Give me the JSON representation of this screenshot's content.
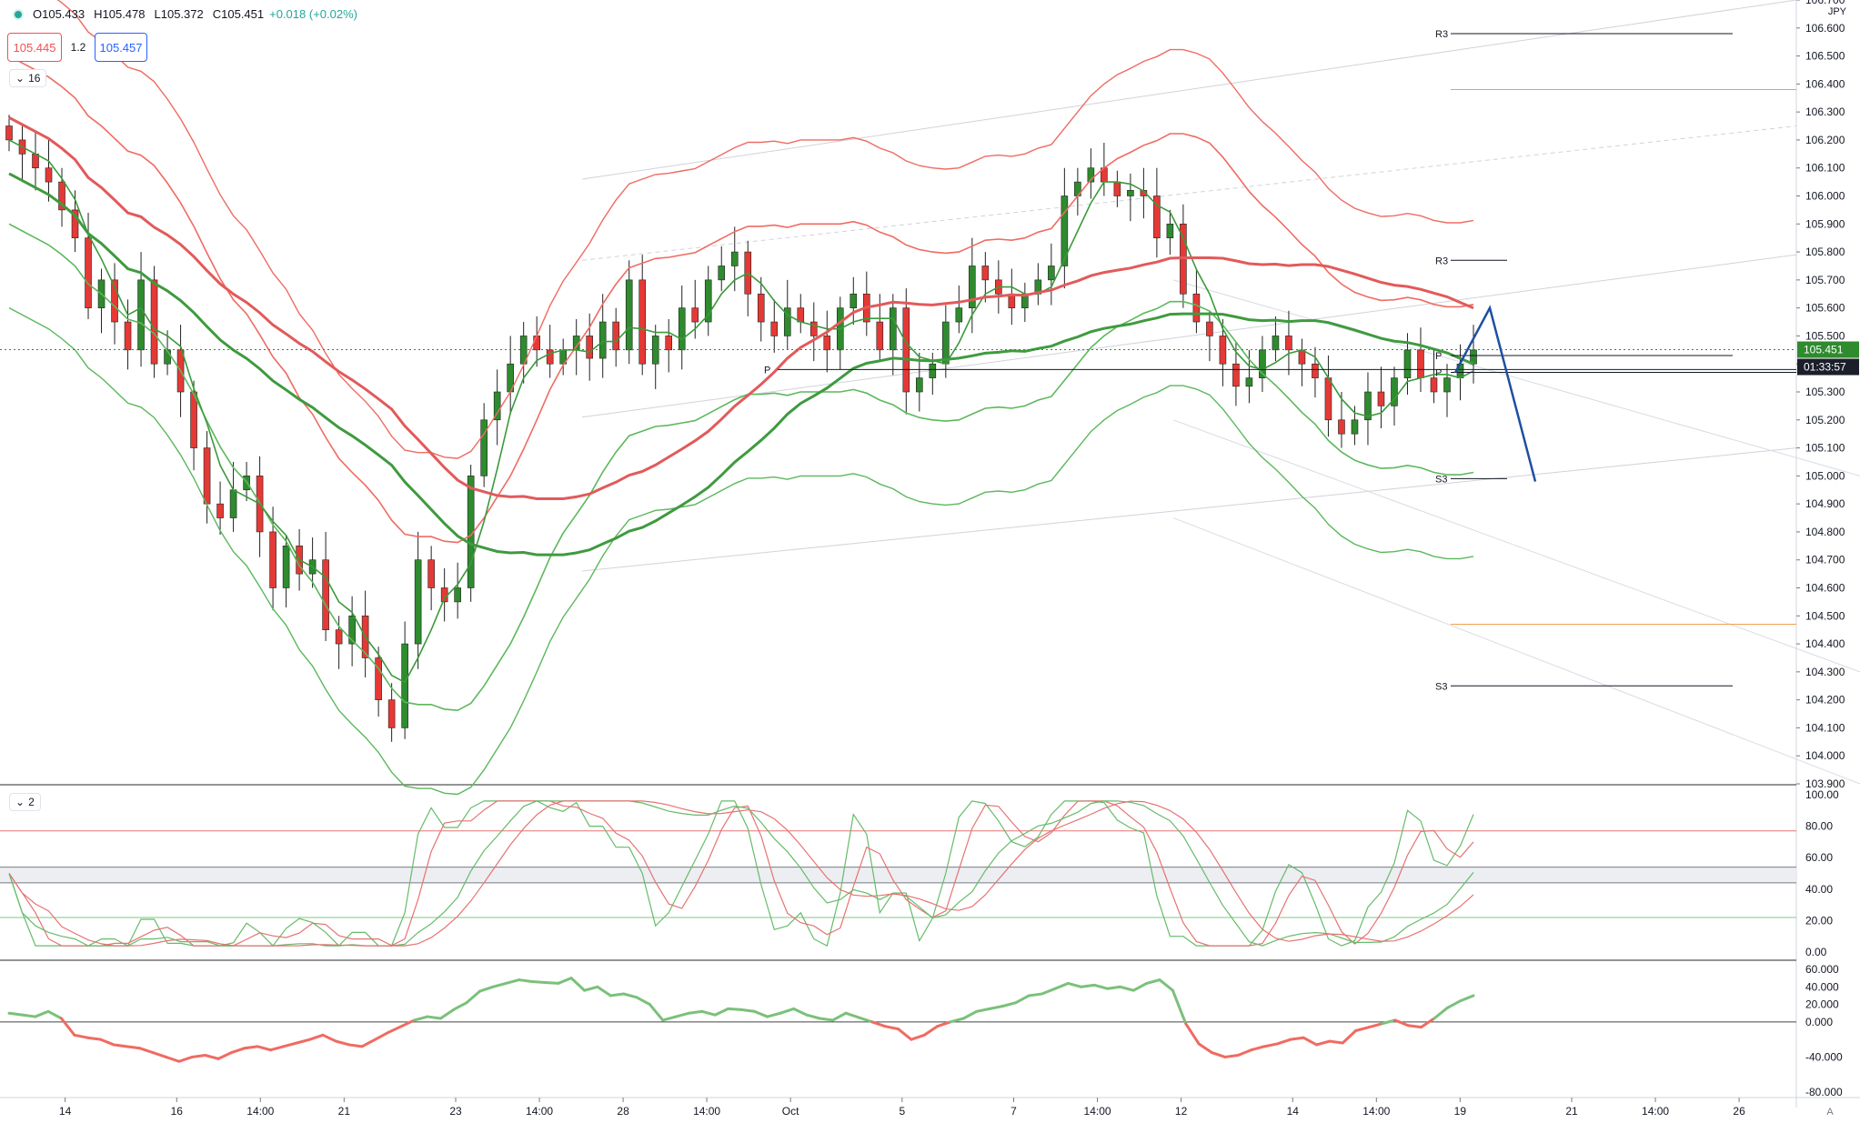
{
  "legend": {
    "open": "O105.433",
    "high": "H105.478",
    "low": "L105.372",
    "close": "C105.451",
    "change": "+0.018 (+0.02%)"
  },
  "quote": {
    "bid": "105.445",
    "spread": "1.2",
    "ask": "105.457"
  },
  "main_pane_toggle": "16",
  "osc_pane_toggle": "2",
  "currency": "JPY",
  "last_price_label": "105.451",
  "countdown_label": "01:33:57",
  "axis_footer": "A",
  "colors": {
    "up": "#2e8b2e",
    "down": "#e53935",
    "accent_blue": "#1e4fa0"
  },
  "chart_data": [
    {
      "type": "candlestick",
      "ylim": [
        103.9,
        106.7
      ],
      "y_ticks": [
        "106.700",
        "106.600",
        "106.500",
        "106.400",
        "106.300",
        "106.200",
        "106.100",
        "106.000",
        "105.900",
        "105.800",
        "105.700",
        "105.600",
        "105.500",
        "105.400",
        "105.300",
        "105.200",
        "105.100",
        "105.000",
        "104.900",
        "104.800",
        "104.700",
        "104.600",
        "104.500",
        "104.400",
        "104.300",
        "104.200",
        "104.100",
        "104.000",
        "103.900"
      ],
      "y_tick_values": [
        106.7,
        106.6,
        106.5,
        106.4,
        106.3,
        106.2,
        106.1,
        106.0,
        105.9,
        105.8,
        105.7,
        105.6,
        105.5,
        105.4,
        105.3,
        105.2,
        105.1,
        105.0,
        104.9,
        104.8,
        104.7,
        104.6,
        104.5,
        104.4,
        104.3,
        104.2,
        104.1,
        104.0,
        103.9
      ],
      "pivot_labels": [
        {
          "label": "R3",
          "value": 106.58
        },
        {
          "label": "R3",
          "value": 105.77
        },
        {
          "label": "P",
          "value": 105.38
        },
        {
          "label": "P",
          "value": 105.37
        },
        {
          "label": "P",
          "value": 105.43
        },
        {
          "label": "S3",
          "value": 104.99
        },
        {
          "label": "S3",
          "value": 104.25
        }
      ],
      "orange_levels": [
        106.38,
        104.47
      ],
      "closes": [
        106.2,
        106.15,
        106.1,
        106.05,
        105.95,
        105.85,
        105.6,
        105.7,
        105.55,
        105.45,
        105.7,
        105.4,
        105.45,
        105.3,
        105.1,
        104.9,
        104.85,
        104.95,
        105.0,
        104.8,
        104.6,
        104.75,
        104.65,
        104.7,
        104.45,
        104.4,
        104.5,
        104.35,
        104.2,
        104.1,
        104.4,
        104.7,
        104.6,
        104.55,
        104.6,
        105.0,
        105.2,
        105.3,
        105.4,
        105.5,
        105.45,
        105.4,
        105.45,
        105.5,
        105.42,
        105.55,
        105.45,
        105.7,
        105.4,
        105.5,
        105.45,
        105.6,
        105.55,
        105.7,
        105.75,
        105.8,
        105.65,
        105.55,
        105.5,
        105.6,
        105.55,
        105.5,
        105.45,
        105.6,
        105.65,
        105.55,
        105.45,
        105.6,
        105.3,
        105.35,
        105.4,
        105.55,
        105.6,
        105.75,
        105.7,
        105.65,
        105.6,
        105.65,
        105.7,
        105.75,
        106.0,
        106.05,
        106.1,
        106.05,
        106.0,
        106.02,
        106.0,
        105.85,
        105.9,
        105.65,
        105.55,
        105.5,
        105.4,
        105.32,
        105.35,
        105.45,
        105.5,
        105.45,
        105.4,
        105.35,
        105.2,
        105.15,
        105.2,
        105.3,
        105.25,
        105.35,
        105.45,
        105.35,
        105.3,
        105.35,
        105.4,
        105.45
      ],
      "x_labels": [
        "14",
        "16",
        "14:00",
        "21",
        "23",
        "14:00",
        "28",
        "14:00",
        "Oct",
        "5",
        "7",
        "14:00",
        "12",
        "14",
        "14:00",
        "19",
        "21",
        "14:00",
        "26"
      ],
      "x_label_positions": [
        0.035,
        0.095,
        0.14,
        0.185,
        0.245,
        0.29,
        0.335,
        0.38,
        0.425,
        0.485,
        0.545,
        0.59,
        0.635,
        0.695,
        0.74,
        0.785,
        0.845,
        0.89,
        0.935
      ]
    },
    {
      "type": "line",
      "name": "stochastic",
      "ylim": [
        0,
        100
      ],
      "y_ticks": [
        "100.00",
        "80.00",
        "60.00",
        "40.00",
        "20.00",
        "0.00"
      ],
      "y_tick_values": [
        100,
        80,
        60,
        40,
        20,
        0
      ],
      "levels": [
        77,
        22
      ]
    },
    {
      "type": "line",
      "name": "momentum",
      "ylim": [
        -80,
        60
      ],
      "y_ticks": [
        "60.000",
        "40.000",
        "20.000",
        "0.000",
        "-40.000",
        "-80.000"
      ],
      "y_tick_values": [
        60,
        40,
        20,
        0,
        -40,
        -80
      ],
      "values": [
        10,
        8,
        6,
        12,
        4,
        -15,
        -18,
        -20,
        -26,
        -28,
        -30,
        -35,
        -40,
        -45,
        -40,
        -38,
        -42,
        -35,
        -30,
        -28,
        -32,
        -28,
        -24,
        -20,
        -15,
        -22,
        -26,
        -28,
        -20,
        -12,
        -5,
        2,
        6,
        4,
        14,
        22,
        35,
        40,
        44,
        48,
        46,
        45,
        44,
        50,
        36,
        40,
        30,
        32,
        28,
        20,
        2,
        6,
        10,
        12,
        8,
        15,
        14,
        12,
        6,
        10,
        15,
        8,
        4,
        2,
        10,
        5,
        0,
        -5,
        -8,
        -20,
        -15,
        -5,
        0,
        4,
        12,
        15,
        18,
        22,
        30,
        32,
        38,
        44,
        40,
        42,
        38,
        40,
        36,
        44,
        48,
        36,
        -2,
        -25,
        -35,
        -40,
        -38,
        -32,
        -28,
        -25,
        -20,
        -18,
        -26,
        -22,
        -24,
        -10,
        -6,
        -2,
        2,
        -4,
        -6,
        4,
        16,
        24,
        30
      ]
    }
  ]
}
